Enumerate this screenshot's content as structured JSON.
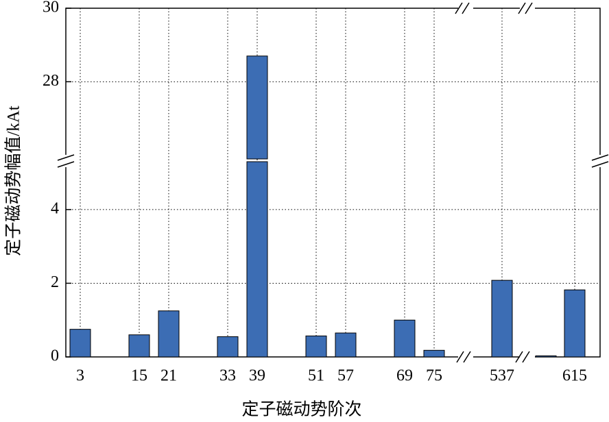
{
  "chart_data": {
    "type": "bar",
    "xlabel": "定子磁动势阶次",
    "ylabel": "定子磁动势幅值/kAt",
    "categories": [
      "3",
      null,
      "15",
      "21",
      null,
      "33",
      "39",
      null,
      "51",
      "57",
      null,
      "69",
      "75",
      "537",
      null,
      "615"
    ],
    "values": [
      0.75,
      null,
      0.6,
      1.25,
      null,
      0.55,
      28.7,
      null,
      0.57,
      0.65,
      null,
      1.0,
      0.18,
      2.08,
      0.03,
      1.82
    ],
    "color": "#3c6db4",
    "ylim": [
      0,
      30
    ],
    "ybreak": [
      5.3,
      25.9
    ],
    "yticks": [
      0,
      2,
      4,
      28,
      30
    ],
    "grid": true
  }
}
